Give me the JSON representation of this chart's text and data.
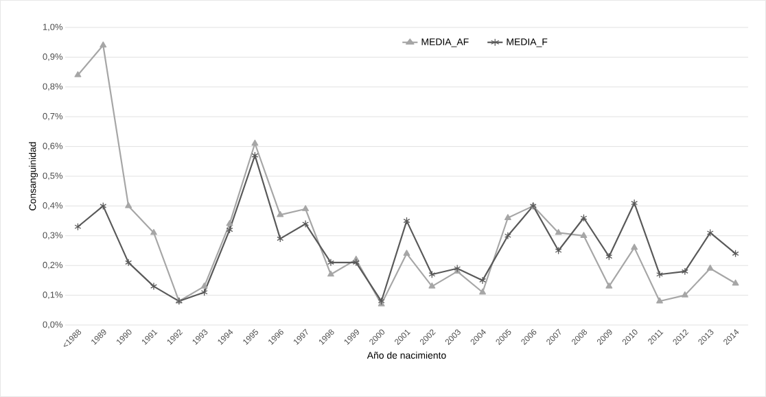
{
  "chart_data": {
    "type": "line",
    "xlabel": "Año de nacimiento",
    "ylabel": "Consanguinidad",
    "categories": [
      "<1988",
      "1989",
      "1990",
      "1991",
      "1992",
      "1993",
      "1994",
      "1995",
      "1996",
      "1997",
      "1998",
      "1999",
      "2000",
      "2001",
      "2002",
      "2003",
      "2004",
      "2005",
      "2006",
      "2007",
      "2008",
      "2009",
      "2010",
      "2011",
      "2012",
      "2013",
      "2014"
    ],
    "series": [
      {
        "name": "MEDIA_AF",
        "color": "#a6a6a6",
        "marker": "triangle",
        "values": [
          0.84,
          0.94,
          0.4,
          0.31,
          0.08,
          0.13,
          0.34,
          0.61,
          0.37,
          0.39,
          0.17,
          0.22,
          0.07,
          0.24,
          0.13,
          0.18,
          0.11,
          0.36,
          0.4,
          0.31,
          0.3,
          0.13,
          0.26,
          0.08,
          0.1,
          0.19,
          0.14
        ]
      },
      {
        "name": "MEDIA_F",
        "color": "#595959",
        "marker": "cross",
        "values": [
          0.33,
          0.4,
          0.21,
          0.13,
          0.08,
          0.11,
          0.32,
          0.57,
          0.29,
          0.34,
          0.21,
          0.21,
          0.08,
          0.35,
          0.17,
          0.19,
          0.15,
          0.3,
          0.4,
          0.25,
          0.36,
          0.23,
          0.41,
          0.17,
          0.18,
          0.31,
          0.24
        ]
      }
    ],
    "ylim": [
      0,
      1.0
    ],
    "yticks": [
      {
        "value": 0,
        "label": "0,0%"
      },
      {
        "value": 0.1,
        "label": "0,1%"
      },
      {
        "value": 0.2,
        "label": "0,2%"
      },
      {
        "value": 0.3,
        "label": "0,3%"
      },
      {
        "value": 0.4,
        "label": "0,4%"
      },
      {
        "value": 0.5,
        "label": "0,5%"
      },
      {
        "value": 0.6,
        "label": "0,6%"
      },
      {
        "value": 0.7,
        "label": "0,7%"
      },
      {
        "value": 0.8,
        "label": "0,8%"
      },
      {
        "value": 0.9,
        "label": "0,9%"
      },
      {
        "value": 1.0,
        "label": "1,0%"
      }
    ],
    "grid": "y",
    "legend": "top"
  }
}
